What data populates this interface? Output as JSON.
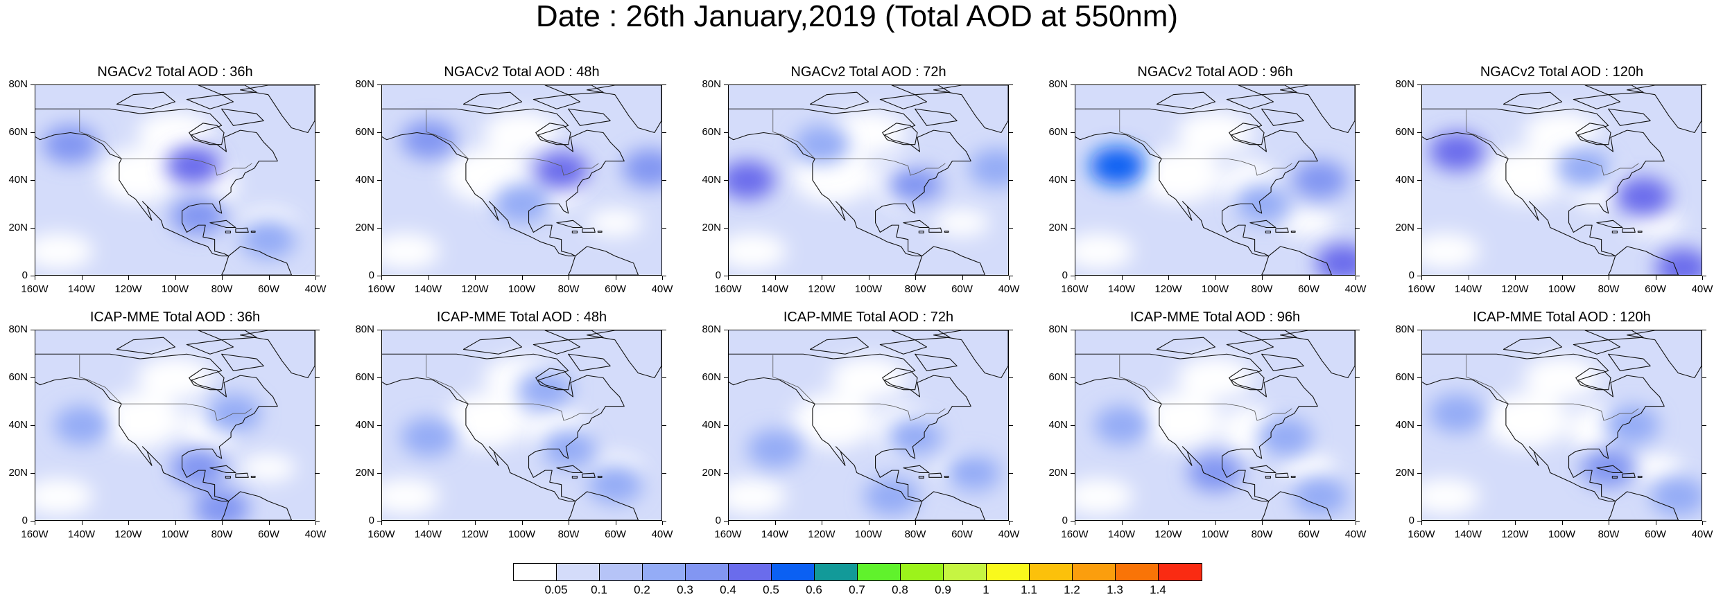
{
  "title": "Date : 26th January,2019 (Total AOD at 550nm)",
  "map": {
    "lat_ticks": [
      "80N",
      "60N",
      "40N",
      "20N",
      "0"
    ],
    "lon_ticks": [
      "160W",
      "140W",
      "120W",
      "100W",
      "80W",
      "60W",
      "40W"
    ],
    "lat_range": [
      0,
      80
    ],
    "lon_range": [
      -160,
      -40
    ]
  },
  "panels": [
    {
      "model": "NGACv2",
      "title": "NGACv2 Total AOD : 36h",
      "hour": 36,
      "plumes": [
        {
          "lon": -92,
          "lat": 46,
          "level": 0.4
        },
        {
          "lon": -145,
          "lat": 55,
          "level": 0.3
        },
        {
          "lon": -90,
          "lat": 25,
          "level": 0.3
        },
        {
          "lon": -60,
          "lat": 15,
          "level": 0.2
        }
      ]
    },
    {
      "model": "NGACv2",
      "title": "NGACv2 Total AOD : 48h",
      "hour": 48,
      "plumes": [
        {
          "lon": -83,
          "lat": 44,
          "level": 0.4
        },
        {
          "lon": -140,
          "lat": 57,
          "level": 0.3
        },
        {
          "lon": -45,
          "lat": 45,
          "level": 0.3
        },
        {
          "lon": -100,
          "lat": 30,
          "level": 0.2
        }
      ]
    },
    {
      "model": "NGACv2",
      "title": "NGACv2 Total AOD : 72h",
      "hour": 72,
      "plumes": [
        {
          "lon": -152,
          "lat": 40,
          "level": 0.4
        },
        {
          "lon": -80,
          "lat": 38,
          "level": 0.3
        },
        {
          "lon": -45,
          "lat": 45,
          "level": 0.2
        },
        {
          "lon": -120,
          "lat": 55,
          "level": 0.2
        }
      ]
    },
    {
      "model": "NGACv2",
      "title": "NGACv2 Total AOD : 96h",
      "hour": 96,
      "plumes": [
        {
          "lon": -142,
          "lat": 46,
          "level": 0.5
        },
        {
          "lon": -55,
          "lat": 40,
          "level": 0.3
        },
        {
          "lon": -45,
          "lat": 5,
          "level": 0.4
        },
        {
          "lon": -80,
          "lat": 30,
          "level": 0.2
        }
      ]
    },
    {
      "model": "NGACv2",
      "title": "NGACv2 Total AOD : 120h",
      "hour": 120,
      "plumes": [
        {
          "lon": -145,
          "lat": 52,
          "level": 0.4
        },
        {
          "lon": -65,
          "lat": 33,
          "level": 0.4
        },
        {
          "lon": -48,
          "lat": 3,
          "level": 0.4
        },
        {
          "lon": -90,
          "lat": 45,
          "level": 0.2
        }
      ]
    },
    {
      "model": "ICAP-MME",
      "title": "ICAP-MME Total AOD : 36h",
      "hour": 36,
      "plumes": [
        {
          "lon": -90,
          "lat": 22,
          "level": 0.3
        },
        {
          "lon": -80,
          "lat": 5,
          "level": 0.3
        },
        {
          "lon": -75,
          "lat": 45,
          "level": 0.2
        },
        {
          "lon": -140,
          "lat": 40,
          "level": 0.2
        }
      ]
    },
    {
      "model": "ICAP-MME",
      "title": "ICAP-MME Total AOD : 48h",
      "hour": 48,
      "plumes": [
        {
          "lon": -80,
          "lat": 30,
          "level": 0.2
        },
        {
          "lon": -140,
          "lat": 35,
          "level": 0.2
        },
        {
          "lon": -60,
          "lat": 15,
          "level": 0.2
        },
        {
          "lon": -90,
          "lat": 55,
          "level": 0.2
        }
      ]
    },
    {
      "model": "ICAP-MME",
      "title": "ICAP-MME Total AOD : 72h",
      "hour": 72,
      "plumes": [
        {
          "lon": -80,
          "lat": 35,
          "level": 0.2
        },
        {
          "lon": -140,
          "lat": 30,
          "level": 0.2
        },
        {
          "lon": -55,
          "lat": 20,
          "level": 0.2
        },
        {
          "lon": -90,
          "lat": 10,
          "level": 0.2
        }
      ]
    },
    {
      "model": "ICAP-MME",
      "title": "ICAP-MME Total AOD : 96h",
      "hour": 96,
      "plumes": [
        {
          "lon": -100,
          "lat": 20,
          "level": 0.3
        },
        {
          "lon": -70,
          "lat": 35,
          "level": 0.2
        },
        {
          "lon": -140,
          "lat": 40,
          "level": 0.2
        },
        {
          "lon": -55,
          "lat": 10,
          "level": 0.2
        }
      ]
    },
    {
      "model": "ICAP-MME",
      "title": "ICAP-MME Total AOD : 120h",
      "hour": 120,
      "plumes": [
        {
          "lon": -80,
          "lat": 22,
          "level": 0.3
        },
        {
          "lon": -70,
          "lat": 40,
          "level": 0.2
        },
        {
          "lon": -145,
          "lat": 45,
          "level": 0.2
        },
        {
          "lon": -50,
          "lat": 10,
          "level": 0.2
        }
      ]
    }
  ],
  "colorbar": {
    "colors": [
      "#ffffff",
      "#d4dcfa",
      "#b6c4f7",
      "#94acf6",
      "#8296f2",
      "#6a6cec",
      "#0b60f3",
      "#129a99",
      "#60f22c",
      "#9cf31b",
      "#c6f542",
      "#f9f91c",
      "#fcc10b",
      "#fb9e0d",
      "#f97407",
      "#fa2b12"
    ],
    "labels": [
      "0.05",
      "0.1",
      "0.2",
      "0.3",
      "0.4",
      "0.5",
      "0.6",
      "0.7",
      "0.8",
      "0.9",
      "1",
      "1.1",
      "1.2",
      "1.3",
      "1.4"
    ]
  }
}
